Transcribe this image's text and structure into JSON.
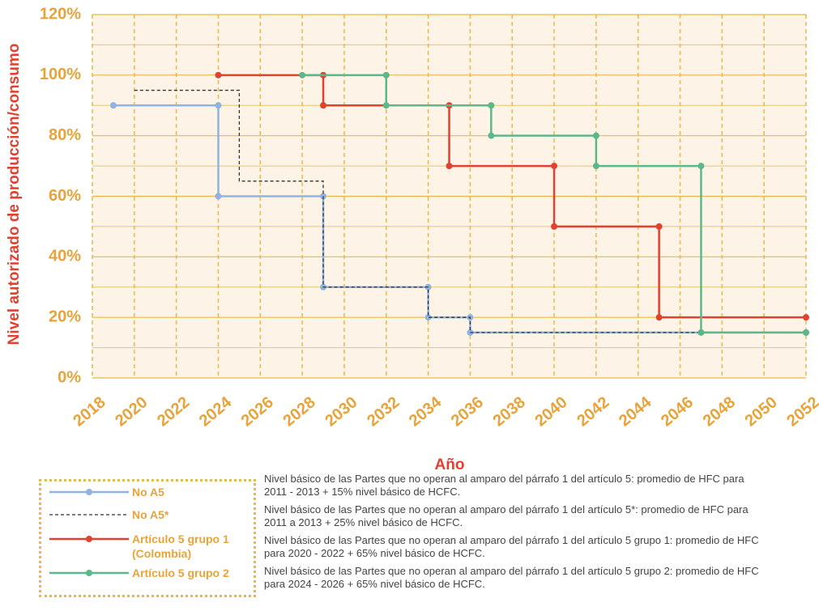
{
  "chart_data": {
    "type": "step-line",
    "y_label": "Nivel autorizado de producción/consumo",
    "x_label": "Año",
    "xlim": [
      2018,
      2052
    ],
    "xticks": [
      2018,
      2020,
      2022,
      2024,
      2026,
      2028,
      2030,
      2032,
      2034,
      2036,
      2038,
      2040,
      2042,
      2044,
      2046,
      2048,
      2050,
      2052
    ],
    "ylim": [
      0,
      120
    ],
    "yticks": [
      {
        "value": 0,
        "label": "0%"
      },
      {
        "value": 20,
        "label": "20%"
      },
      {
        "value": 40,
        "label": "40%"
      },
      {
        "value": 60,
        "label": "60%"
      },
      {
        "value": 80,
        "label": "80%"
      },
      {
        "value": 100,
        "label": "100%"
      },
      {
        "value": 120,
        "label": "120%"
      }
    ],
    "y_minor_ticks": [
      10,
      30,
      50,
      70,
      90,
      110
    ],
    "grid": true,
    "series": [
      {
        "name": "No A5",
        "color": "#8fb4e3",
        "markers": true,
        "dash": false,
        "x": [
          2019,
          2024,
          2024,
          2029,
          2029,
          2034,
          2034,
          2036,
          2036,
          2052
        ],
        "values": [
          90,
          90,
          60,
          60,
          30,
          30,
          20,
          20,
          15,
          15
        ]
      },
      {
        "name": "No A5*",
        "color": "#333333",
        "markers": false,
        "dash": true,
        "x": [
          2020,
          2025,
          2025,
          2029,
          2029,
          2034,
          2034,
          2036,
          2036,
          2052
        ],
        "values": [
          95,
          95,
          65,
          65,
          30,
          30,
          20,
          20,
          15,
          15
        ]
      },
      {
        "name": "Artículo 5 grupo 1 (Colombia)",
        "color": "#e2412f",
        "markers": true,
        "dash": false,
        "x": [
          2024,
          2029,
          2029,
          2035,
          2035,
          2040,
          2040,
          2045,
          2045,
          2052
        ],
        "values": [
          100,
          100,
          90,
          90,
          70,
          70,
          50,
          50,
          20,
          20
        ]
      },
      {
        "name": "Artículo 5 grupo 2",
        "color": "#5cb88a",
        "markers": true,
        "dash": false,
        "x": [
          2028,
          2032,
          2032,
          2037,
          2037,
          2042,
          2042,
          2047,
          2047,
          2052
        ],
        "values": [
          100,
          100,
          90,
          90,
          80,
          80,
          70,
          70,
          15,
          15
        ]
      }
    ],
    "notes": [
      "Nivel básico de las Partes que no operan al amparo del párrafo 1 del artículo 5: promedio de HFC para 2011 - 2013 + 15% nivel básico de HCFC.",
      "Nivel básico de las Partes que no operan al amparo del párrafo 1 del artículo 5*: promedio de HFC para 2011 a 2013 + 25% nivel básico de HCFC.",
      "Nivel básico de las Partes que no operan al amparo del párrafo 1 del artículo 5 grupo 1: promedio de HFC para 2020 - 2022 + 65% nivel básico de HCFC.",
      "Nivel básico de las Partes que no operan al amparo del párrafo 1 del artículo 5 grupo 2: promedio de HFC para 2024 - 2026 + 65% nivel básico de HCFC."
    ]
  }
}
